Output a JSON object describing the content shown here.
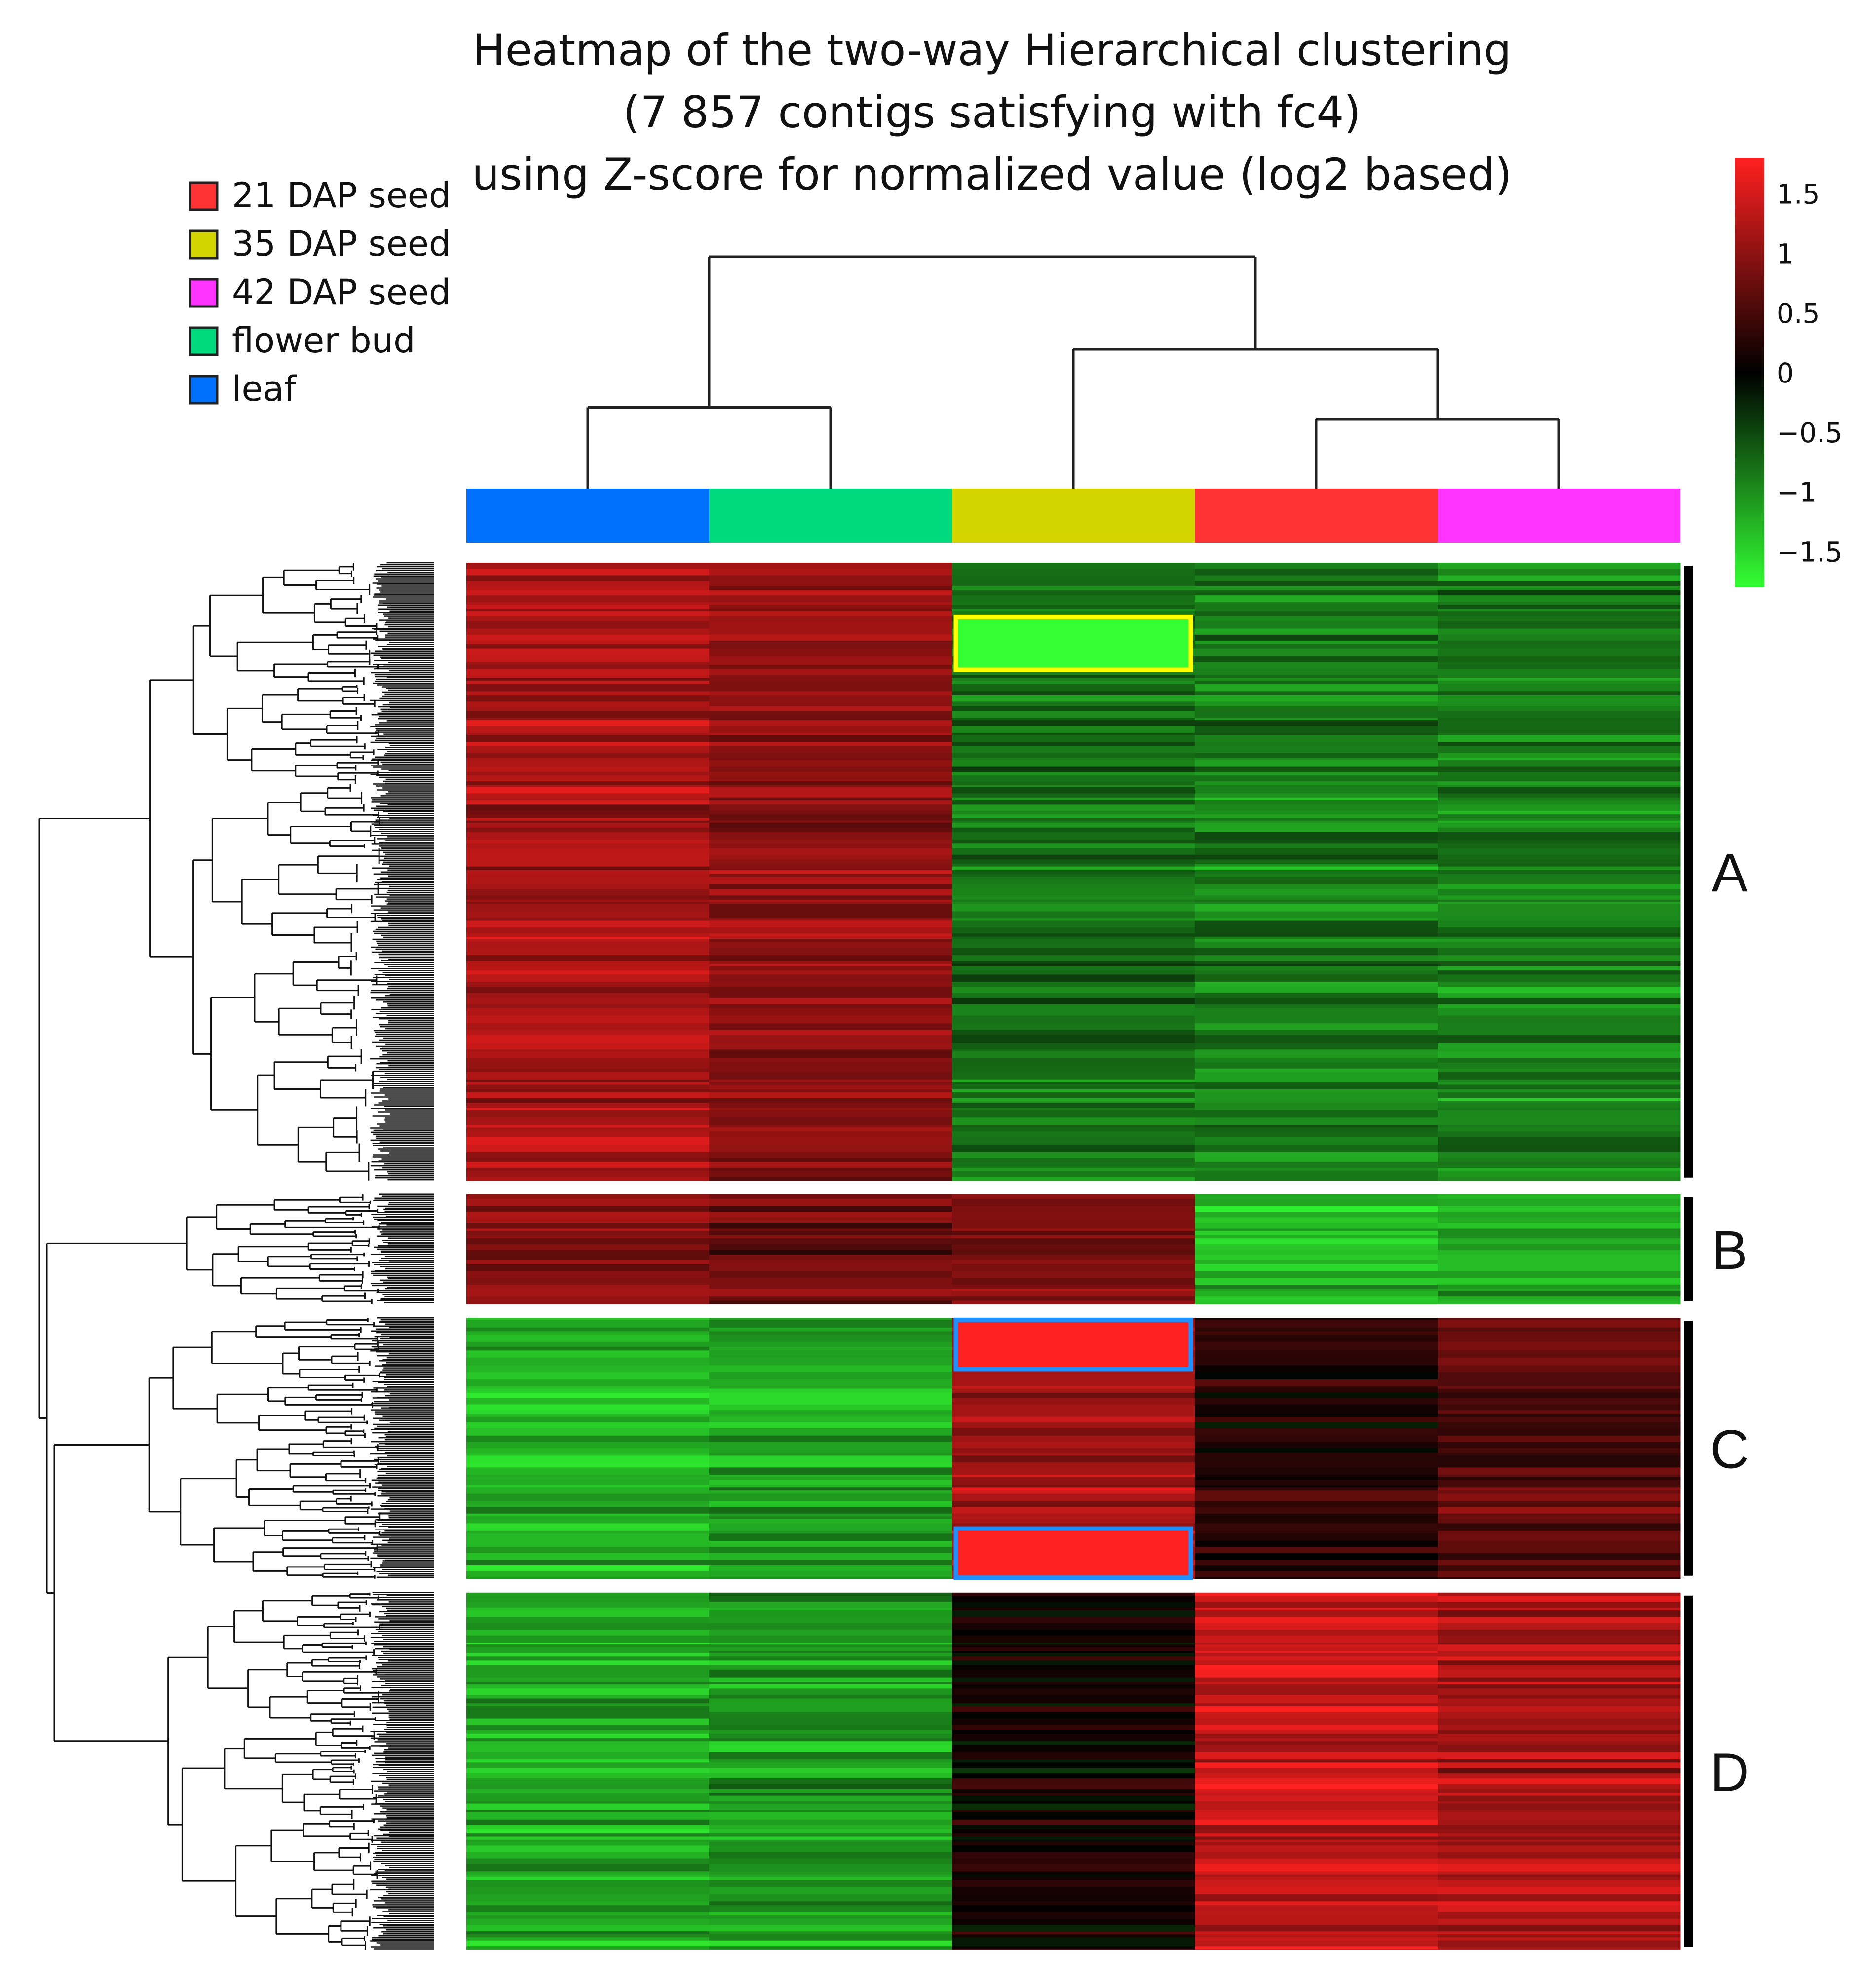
{
  "chart_data": {
    "type": "heatmap",
    "title_lines": [
      "Heatmap of the two-way Hierarchical clustering",
      "(7 857 contigs satisfying with fc4)",
      "using Z-score for normalized value (log2 based)"
    ],
    "legend": {
      "placement": "top-left",
      "items": [
        {
          "label": "21 DAP seed",
          "color": "#ff3333"
        },
        {
          "label": "35 DAP seed",
          "color": "#d4d400"
        },
        {
          "label": "42 DAP seed",
          "color": "#ff33ff"
        },
        {
          "label": "flower bud",
          "color": "#00d97e"
        },
        {
          "label": "leaf",
          "color": "#0070ff"
        }
      ]
    },
    "color_scale": {
      "min": -1.8,
      "max": 1.8,
      "low_color": "#33ff33",
      "mid_color": "#000000",
      "high_color": "#ff2020",
      "ticks": [
        {
          "value": 1.5,
          "label": "1.5"
        },
        {
          "value": 1,
          "label": "1"
        },
        {
          "value": 0.5,
          "label": "0.5"
        },
        {
          "value": 0,
          "label": "0"
        },
        {
          "value": -0.5,
          "label": "−0.5"
        },
        {
          "value": -1,
          "label": "−1"
        },
        {
          "value": -1.5,
          "label": "−1.5"
        }
      ]
    },
    "columns": [
      {
        "sample": "leaf",
        "color": "#0070ff"
      },
      {
        "sample": "flower bud",
        "color": "#00d97e"
      },
      {
        "sample": "35 DAP seed",
        "color": "#d4d400"
      },
      {
        "sample": "21 DAP seed",
        "color": "#ff3333"
      },
      {
        "sample": "42 DAP seed",
        "color": "#ff33ff"
      }
    ],
    "column_dendrogram": [
      {
        "merge": [
          "leaf",
          "flower bud"
        ],
        "height": 0.35
      },
      {
        "merge": [
          "21 DAP seed",
          "42 DAP seed"
        ],
        "height": 0.3
      },
      {
        "merge": [
          "35 DAP seed",
          "21 DAP seed + 42 DAP seed"
        ],
        "height": 0.6
      },
      {
        "merge": [
          "leaf + flower bud",
          "35 DAP seed + 21 DAP seed + 42 DAP seed"
        ],
        "height": 1.0
      }
    ],
    "clusters": [
      {
        "label": "A",
        "row_share": 0.45,
        "zscore_by_column": [
          1.2,
          1.0,
          -0.8,
          -0.9,
          -0.9
        ]
      },
      {
        "label": "B",
        "row_share": 0.08,
        "zscore_by_column": [
          0.9,
          0.8,
          0.9,
          -1.3,
          -1.2
        ]
      },
      {
        "label": "C",
        "row_share": 0.19,
        "zscore_by_column": [
          -1.2,
          -1.1,
          1.2,
          0.3,
          0.6
        ]
      },
      {
        "label": "D",
        "row_share": 0.26,
        "zscore_by_column": [
          -1.2,
          -1.1,
          0.1,
          1.4,
          1.2
        ]
      }
    ],
    "highlighted_blocks": [
      {
        "cluster": "A",
        "column": "35 DAP seed",
        "value": -1.8,
        "outline_color": "#ffff00"
      },
      {
        "cluster": "C",
        "column": "35 DAP seed",
        "value": 1.8,
        "outline_color": "#1e90ff"
      },
      {
        "cluster": "C",
        "column": "35 DAP seed",
        "value": 1.8,
        "outline_color": "#1e90ff"
      }
    ]
  }
}
